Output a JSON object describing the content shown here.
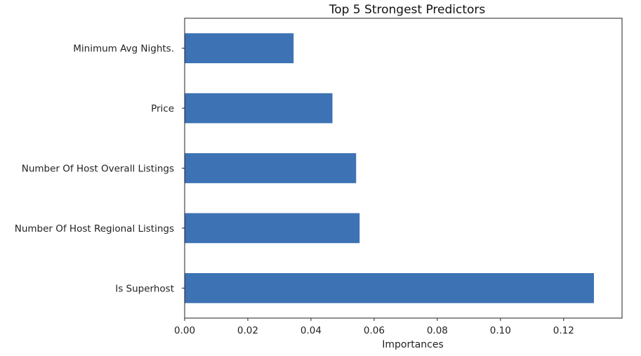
{
  "chart_data": {
    "type": "bar",
    "orientation": "horizontal",
    "title": "Top 5 Strongest Predictors",
    "xlabel": "Importances",
    "ylabel": "",
    "categories": [
      "Minimum Avg Nights.",
      "Price",
      "Number Of Host Overall Listings",
      "Number Of Host Regional Listings",
      "Is Superhost"
    ],
    "values": [
      0.0345,
      0.0468,
      0.0543,
      0.0554,
      0.1296
    ],
    "xlim": [
      0,
      0.1385
    ],
    "xticks": [
      0.0,
      0.02,
      0.04,
      0.06,
      0.08,
      0.1,
      0.12
    ],
    "xtick_labels": [
      "0.00",
      "0.02",
      "0.04",
      "0.06",
      "0.08",
      "0.10",
      "0.12"
    ],
    "bar_color": "#3d72b4",
    "grid": false,
    "legend": "none"
  }
}
